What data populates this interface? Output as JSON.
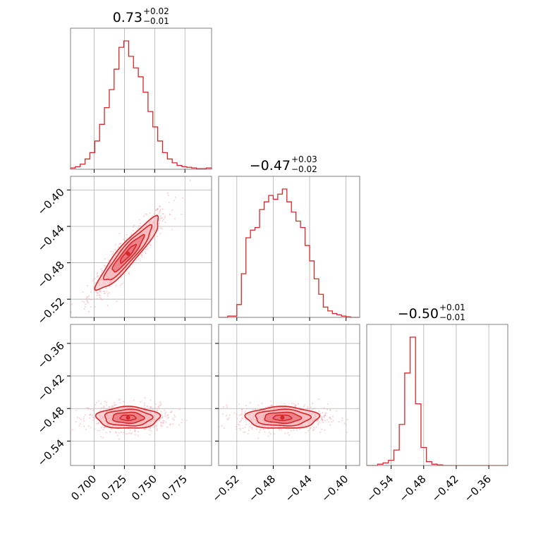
{
  "colors": {
    "line": "#d62728",
    "fill_inner": "#e8707a",
    "fill_outer": "#f5b5ba",
    "scatter": "#f4a6ab",
    "grid": "#b0b0b0",
    "frame": "#808080"
  },
  "chart_data": {
    "type": "corner",
    "parameters": [
      {
        "median_text": "0.73",
        "err_plus": "+0.02",
        "err_minus": "−0.01",
        "range": [
          0.6805,
          0.797
        ],
        "ticks": [
          0.7,
          0.725,
          0.75,
          0.775
        ],
        "tick_labels": [
          "0.700",
          "0.725",
          "0.750",
          "0.775"
        ]
      },
      {
        "median_text": "−0.47",
        "err_plus": "+0.03",
        "err_minus": "−0.02",
        "range": [
          -0.54,
          -0.385
        ],
        "ticks": [
          -0.52,
          -0.48,
          -0.44,
          -0.4
        ],
        "tick_labels": [
          "−0.52",
          "−0.48",
          "−0.44",
          "−0.40"
        ]
      },
      {
        "median_text": "−0.50",
        "err_plus": "+0.01",
        "err_minus": "−0.01",
        "range": [
          -0.585,
          -0.325
        ],
        "ticks": [
          -0.54,
          -0.48,
          -0.42,
          -0.36
        ],
        "tick_labels": [
          "−0.54",
          "−0.48",
          "−0.42",
          "−0.36"
        ]
      }
    ],
    "histograms": [
      {
        "parameter": 0,
        "bin_edges": [
          0.6805,
          0.6845,
          0.6885,
          0.6925,
          0.6965,
          0.7005,
          0.7045,
          0.7085,
          0.7125,
          0.7165,
          0.7205,
          0.7245,
          0.7285,
          0.7325,
          0.7365,
          0.7405,
          0.7445,
          0.7485,
          0.7525,
          0.7565,
          0.7605,
          0.7645,
          0.7685,
          0.7725,
          0.7765,
          0.7805,
          0.7845,
          0.7885,
          0.7925,
          0.797
        ],
        "density": [
          0.01,
          0.02,
          0.04,
          0.08,
          0.13,
          0.22,
          0.35,
          0.48,
          0.62,
          0.78,
          0.95,
          1.0,
          0.88,
          0.79,
          0.72,
          0.6,
          0.45,
          0.33,
          0.22,
          0.13,
          0.08,
          0.05,
          0.03,
          0.02,
          0.015,
          0.01,
          0.005,
          0.005,
          0.01
        ]
      },
      {
        "parameter": 1,
        "bin_edges": [
          -0.54,
          -0.535,
          -0.53,
          -0.525,
          -0.52,
          -0.515,
          -0.51,
          -0.505,
          -0.5,
          -0.495,
          -0.49,
          -0.485,
          -0.48,
          -0.475,
          -0.47,
          -0.465,
          -0.46,
          -0.455,
          -0.45,
          -0.445,
          -0.44,
          -0.435,
          -0.43,
          -0.425,
          -0.42,
          -0.415,
          -0.41,
          -0.405,
          -0.4,
          -0.395,
          -0.385
        ],
        "density": [
          0.0,
          0.0,
          0.01,
          0.01,
          0.1,
          0.34,
          0.62,
          0.68,
          0.7,
          0.84,
          0.9,
          0.95,
          0.92,
          0.96,
          1.0,
          0.9,
          0.82,
          0.75,
          0.7,
          0.56,
          0.44,
          0.3,
          0.18,
          0.08,
          0.05,
          0.03,
          0.02,
          0.01,
          0.005,
          0.0
        ]
      },
      {
        "parameter": 2,
        "bin_edges": [
          -0.585,
          -0.575,
          -0.565,
          -0.555,
          -0.545,
          -0.535,
          -0.525,
          -0.515,
          -0.505,
          -0.495,
          -0.485,
          -0.475,
          -0.465,
          -0.455,
          -0.445,
          -0.435,
          -0.425,
          -0.415,
          -0.405,
          -0.395,
          -0.385,
          -0.375,
          -0.365,
          -0.355,
          -0.345,
          -0.325
        ],
        "density": [
          0.0,
          0.0,
          0.01,
          0.02,
          0.04,
          0.12,
          0.32,
          0.72,
          1.0,
          0.48,
          0.14,
          0.03,
          0.01,
          0.005,
          0.0,
          0.0,
          0.0,
          0.0,
          0.0,
          0.0,
          0.0,
          0.0,
          0.0,
          0.0,
          0.0
        ]
      }
    ],
    "pairs": [
      {
        "x_param": 0,
        "y_param": 1,
        "center": [
          0.728,
          -0.47
        ],
        "sigma": [
          0.013,
          0.02
        ],
        "correlation": 0.92
      },
      {
        "x_param": 0,
        "y_param": 2,
        "center": [
          0.728,
          -0.497
        ],
        "sigma": [
          0.013,
          0.01
        ],
        "correlation": 0.0
      },
      {
        "x_param": 1,
        "y_param": 2,
        "center": [
          -0.47,
          -0.497
        ],
        "sigma": [
          0.02,
          0.01
        ],
        "correlation": 0.0
      }
    ],
    "contour_levels_sigma": [
      0.5,
      1.0,
      1.5,
      2.0
    ],
    "grid": true
  }
}
